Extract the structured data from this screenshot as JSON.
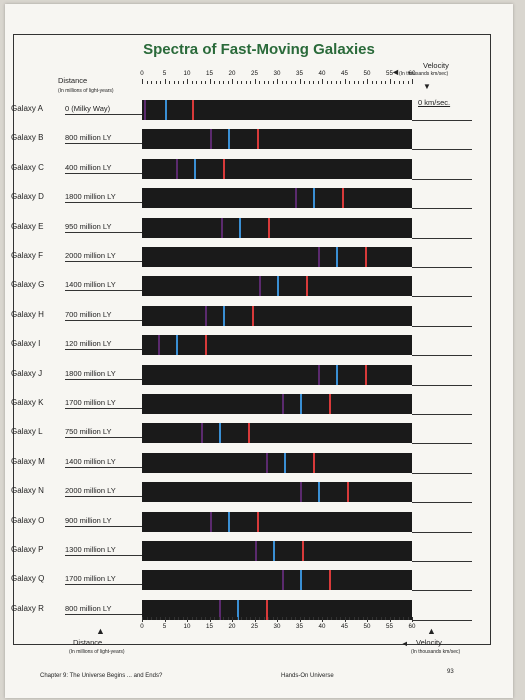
{
  "title": "Spectra of Fast-Moving Galaxies",
  "distance_header": {
    "label": "Distance",
    "unit": "(In millions of light-years)"
  },
  "velocity_header": {
    "label": "Velocity",
    "unit": "(In thousands km/sec)"
  },
  "ticks": [
    "0",
    "5",
    "10",
    "15",
    "20",
    "25",
    "30",
    "35",
    "40",
    "45",
    "50",
    "55",
    "60"
  ],
  "top_velocity_answer": "0 km/sec.",
  "line_colors": {
    "violet": "#5b2a6e",
    "blue": "#3a8fd4",
    "red": "#d83a3a"
  },
  "galaxies": [
    {
      "name": "Galaxy A",
      "distance": "0 (Milky Way)",
      "lines": [
        0.5,
        5.0,
        11.2
      ]
    },
    {
      "name": "Galaxy B",
      "distance": "800 million LY",
      "lines": [
        15.0,
        19.0,
        25.5
      ]
    },
    {
      "name": "Galaxy C",
      "distance": "400 million LY",
      "lines": [
        7.5,
        11.5,
        18.0
      ]
    },
    {
      "name": "Galaxy D",
      "distance": "1800 million LY",
      "lines": [
        34.0,
        38.0,
        44.5
      ]
    },
    {
      "name": "Galaxy E",
      "distance": "950 million LY",
      "lines": [
        17.5,
        21.5,
        28.0
      ]
    },
    {
      "name": "Galaxy F",
      "distance": "2000 million LY",
      "lines": [
        39.0,
        43.0,
        49.5
      ]
    },
    {
      "name": "Galaxy G",
      "distance": "1400 million LY",
      "lines": [
        26.0,
        30.0,
        36.5
      ]
    },
    {
      "name": "Galaxy H",
      "distance": "700 million LY",
      "lines": [
        14.0,
        18.0,
        24.5
      ]
    },
    {
      "name": "Galaxy I",
      "distance": "120 million LY",
      "lines": [
        3.5,
        7.5,
        14.0
      ]
    },
    {
      "name": "Galaxy J",
      "distance": "1800 million LY",
      "lines": [
        39.0,
        43.0,
        49.5
      ]
    },
    {
      "name": "Galaxy K",
      "distance": "1700 million LY",
      "lines": [
        31.0,
        35.0,
        41.5
      ]
    },
    {
      "name": "Galaxy L",
      "distance": "750 million LY",
      "lines": [
        13.0,
        17.0,
        23.5
      ]
    },
    {
      "name": "Galaxy M",
      "distance": "1400 million LY",
      "lines": [
        27.5,
        31.5,
        38.0
      ]
    },
    {
      "name": "Galaxy N",
      "distance": "2000 million LY",
      "lines": [
        35.0,
        39.0,
        45.5
      ]
    },
    {
      "name": "Galaxy O",
      "distance": "900 million LY",
      "lines": [
        15.0,
        19.0,
        25.5
      ]
    },
    {
      "name": "Galaxy P",
      "distance": "1300 million LY",
      "lines": [
        25.0,
        29.0,
        35.5
      ]
    },
    {
      "name": "Galaxy Q",
      "distance": "1700 million LY",
      "lines": [
        31.0,
        35.0,
        41.5
      ]
    },
    {
      "name": "Galaxy R",
      "distance": "800 million LY",
      "lines": [
        17.0,
        21.0,
        27.5
      ]
    }
  ],
  "footer": {
    "chapter": "Chapter 9: The Universe Begins ... and Ends?",
    "book": "Hands-On Universe",
    "page_number": "93"
  }
}
